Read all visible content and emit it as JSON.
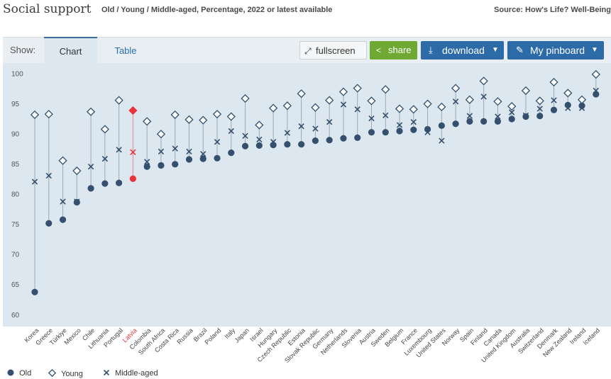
{
  "header": {
    "title": "Social support",
    "subtitle": "Old / Young / Middle-aged, Percentage, 2022 or latest available",
    "source": "Source: How's Life? Well-Being"
  },
  "toolbar": {
    "show_label": "Show:",
    "tab_chart": "Chart",
    "tab_table": "Table",
    "fullscreen_label": "fullscreen",
    "share_label": "share",
    "download_label": "download",
    "pinboard_label": "My pinboard",
    "icons": [
      "expand-icon",
      "share-icon",
      "download-icon",
      "pin-icon",
      "caret-down-icon"
    ]
  },
  "colors": {
    "old": "#34506e",
    "young": "#34506e",
    "middle": "#34506e",
    "highlight": "#e8333a",
    "plot_bg": "#dce7ef"
  },
  "chart_data": {
    "type": "scatter",
    "categories": [
      "Korea",
      "Greece",
      "Türkiye",
      "Mexico",
      "Chile",
      "Lithuania",
      "Portugal",
      "Latvia",
      "Colombia",
      "South Africa",
      "Costa Rica",
      "Russia",
      "Brazil",
      "Poland",
      "Italy",
      "Japan",
      "Israel",
      "Hungary",
      "Czech Republic",
      "Estonia",
      "Slovak Republic",
      "Germany",
      "Netherlands",
      "Slovenia",
      "Austria",
      "Sweden",
      "Belgium",
      "France",
      "Luxembourg",
      "United States",
      "Norway",
      "Spain",
      "Finland",
      "Canada",
      "United Kingdom",
      "Australia",
      "Switzerland",
      "Denmark",
      "New Zealand",
      "Ireland",
      "Iceland"
    ],
    "highlight_category": "Latvia",
    "series": [
      {
        "name": "Old",
        "marker": "circle",
        "values": [
          63.7,
          75.1,
          75.7,
          78.6,
          80.9,
          81.7,
          81.8,
          82.5,
          84.5,
          84.7,
          84.9,
          85.7,
          85.8,
          85.9,
          86.8,
          87.9,
          88.0,
          88.1,
          88.2,
          88.2,
          88.8,
          88.9,
          89.2,
          89.3,
          90.2,
          90.2,
          90.4,
          90.6,
          90.7,
          91.3,
          91.6,
          92.0,
          92.0,
          92.0,
          92.4,
          92.8,
          92.9,
          93.9,
          94.7,
          94.6,
          96.5
        ]
      },
      {
        "name": "Young",
        "marker": "diamond",
        "values": [
          93.1,
          93.2,
          85.5,
          83.8,
          93.6,
          90.7,
          95.5,
          93.8,
          92.0,
          89.9,
          93.1,
          92.3,
          92.2,
          93.2,
          92.8,
          95.8,
          91.4,
          94.2,
          94.6,
          96.6,
          94.3,
          95.5,
          96.9,
          97.5,
          95.4,
          97.3,
          94.1,
          94.0,
          94.9,
          94.4,
          97.5,
          95.6,
          98.7,
          95.3,
          94.5,
          97.1,
          95.4,
          98.5,
          96.7,
          95.6,
          99.8
        ]
      },
      {
        "name": "Middle-aged",
        "marker": "x",
        "values": [
          82.0,
          83.0,
          78.7,
          78.7,
          84.5,
          85.8,
          87.3,
          86.9,
          85.3,
          87.0,
          87.5,
          87.0,
          86.6,
          88.6,
          90.4,
          89.6,
          89.0,
          88.6,
          90.1,
          91.2,
          90.8,
          91.9,
          94.8,
          94.0,
          92.5,
          93.0,
          91.4,
          91.9,
          90.2,
          88.8,
          95.3,
          92.9,
          96.1,
          92.8,
          93.5,
          93.0,
          94.1,
          95.5,
          94.2,
          94.2,
          97.1
        ]
      }
    ],
    "yticks": [
      60,
      65,
      70,
      75,
      80,
      85,
      90,
      95,
      100
    ],
    "ylim": [
      58.8,
      101.5
    ],
    "grid": false,
    "legend_position": "bottom-left"
  },
  "legend": {
    "items": [
      {
        "label": "Old"
      },
      {
        "label": "Young"
      },
      {
        "label": "Middle-aged"
      }
    ]
  }
}
